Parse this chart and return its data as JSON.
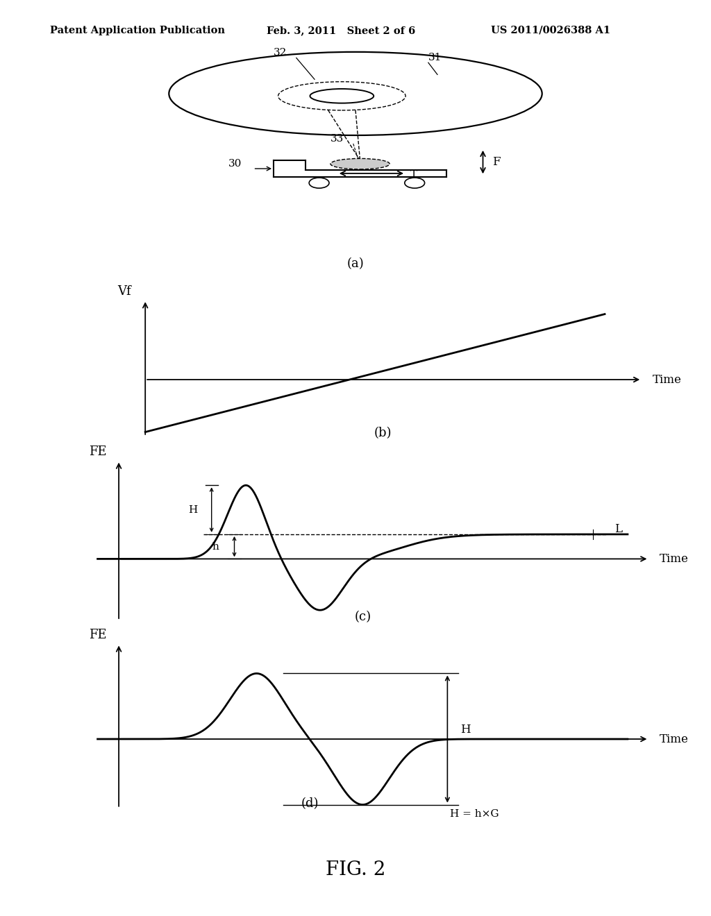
{
  "header_left": "Patent Application Publication",
  "header_mid": "Feb. 3, 2011   Sheet 2 of 6",
  "header_right": "US 2011/0026388 A1",
  "fig_label": "FIG. 2",
  "bg_color": "#ffffff",
  "line_color": "#000000",
  "sub_labels": [
    "(a)",
    "(b)",
    "(c)",
    "(d)"
  ],
  "panel_b_ylabel": "Vf",
  "panel_b_xlabel": "Time",
  "panel_c_ylabel": "FE",
  "panel_c_xlabel": "Time",
  "panel_c_H": "H",
  "panel_c_h": "h",
  "panel_c_L": "L",
  "panel_d_ylabel": "FE",
  "panel_d_xlabel": "Time",
  "panel_d_H": "H",
  "panel_d_formula": "H = h×G"
}
